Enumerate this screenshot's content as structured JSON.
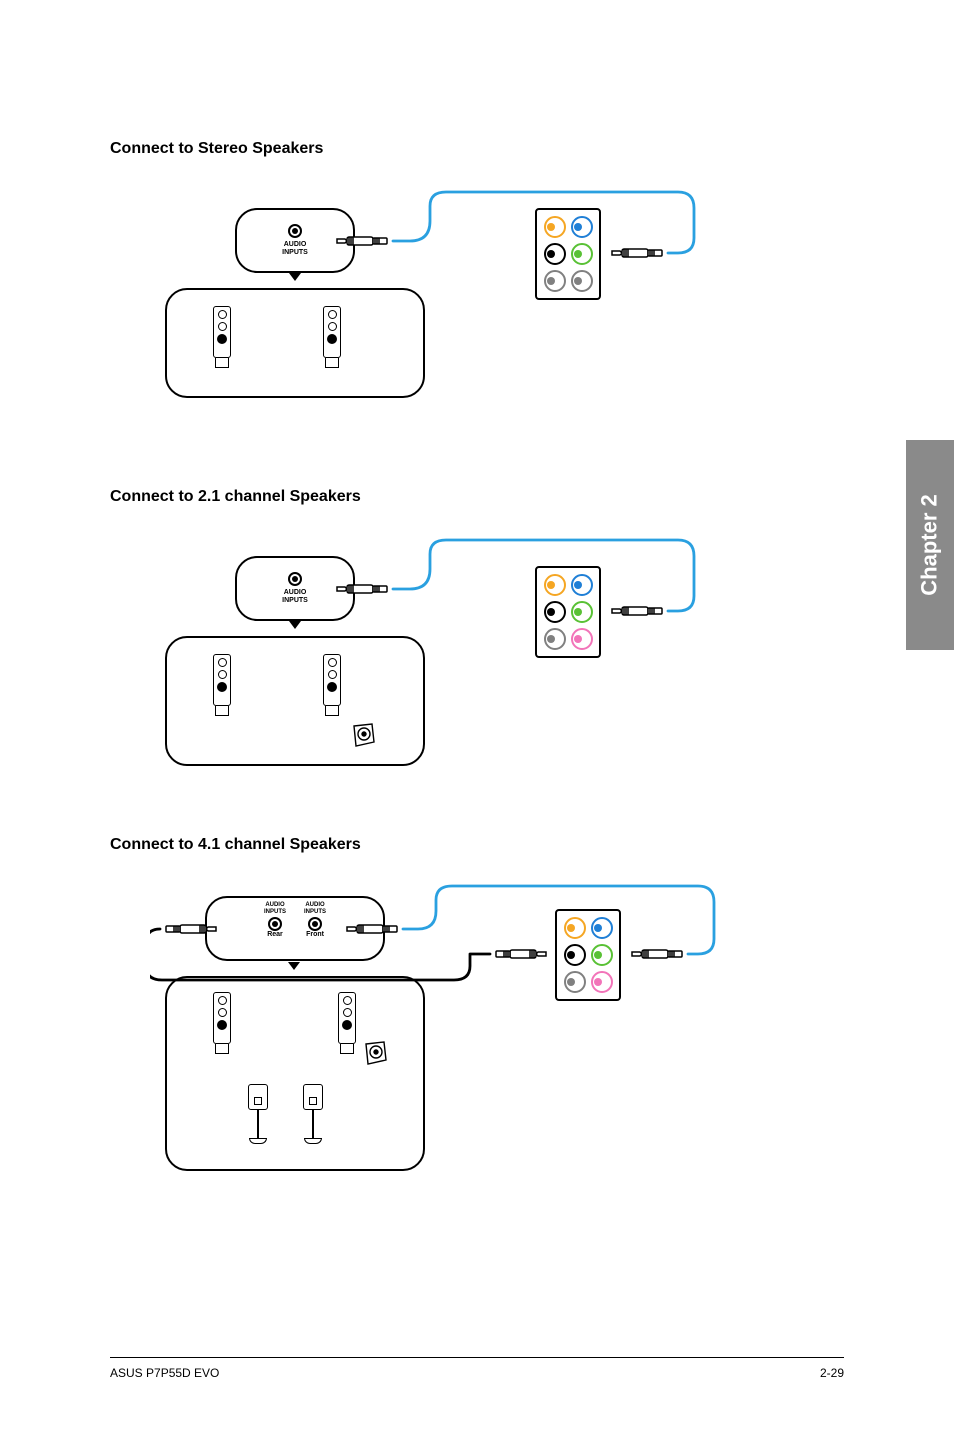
{
  "headings": {
    "stereo": "Connect to Stereo Speakers",
    "ch21": "Connect to 2.1 channel Speakers",
    "ch41": "Connect to 4.1 channel Speakers"
  },
  "labels": {
    "audio_inputs": "AUDIO\nINPUTS",
    "rear": "Rear",
    "front": "Front"
  },
  "port_colors": {
    "orange": "#f5a623",
    "blue": "#1f7fd6",
    "black": "#000000",
    "lime": "#59c135",
    "gray": "#808080",
    "pink": "#f274b9"
  },
  "cable_colors": {
    "lime": "#1f7fd6_unused",
    "active_blue": "#2aa0e0",
    "inactive": "#000000"
  },
  "side_tab": "Chapter 2",
  "footer": {
    "left": "ASUS P7P55D EVO",
    "right": "2-29"
  },
  "diagrams": {
    "stereo": {
      "ports_active": [
        "lime"
      ],
      "ports": [
        {
          "row": 0,
          "col": 0,
          "color": "orange"
        },
        {
          "row": 0,
          "col": 1,
          "color": "blue"
        },
        {
          "row": 1,
          "col": 0,
          "color": "black"
        },
        {
          "row": 1,
          "col": 1,
          "color": "lime"
        },
        {
          "row": 2,
          "col": 0,
          "color": "gray"
        },
        {
          "row": 2,
          "col": 1,
          "color": "gray"
        }
      ]
    },
    "ch21": {
      "ports": [
        {
          "row": 0,
          "col": 0,
          "color": "orange"
        },
        {
          "row": 0,
          "col": 1,
          "color": "blue"
        },
        {
          "row": 1,
          "col": 0,
          "color": "black"
        },
        {
          "row": 1,
          "col": 1,
          "color": "lime"
        },
        {
          "row": 2,
          "col": 0,
          "color": "gray"
        },
        {
          "row": 2,
          "col": 1,
          "color": "pink"
        }
      ]
    },
    "ch41": {
      "ports": [
        {
          "row": 0,
          "col": 0,
          "color": "orange"
        },
        {
          "row": 0,
          "col": 1,
          "color": "blue"
        },
        {
          "row": 1,
          "col": 0,
          "color": "black"
        },
        {
          "row": 1,
          "col": 1,
          "color": "lime"
        },
        {
          "row": 2,
          "col": 0,
          "color": "gray"
        },
        {
          "row": 2,
          "col": 1,
          "color": "pink"
        }
      ]
    }
  }
}
